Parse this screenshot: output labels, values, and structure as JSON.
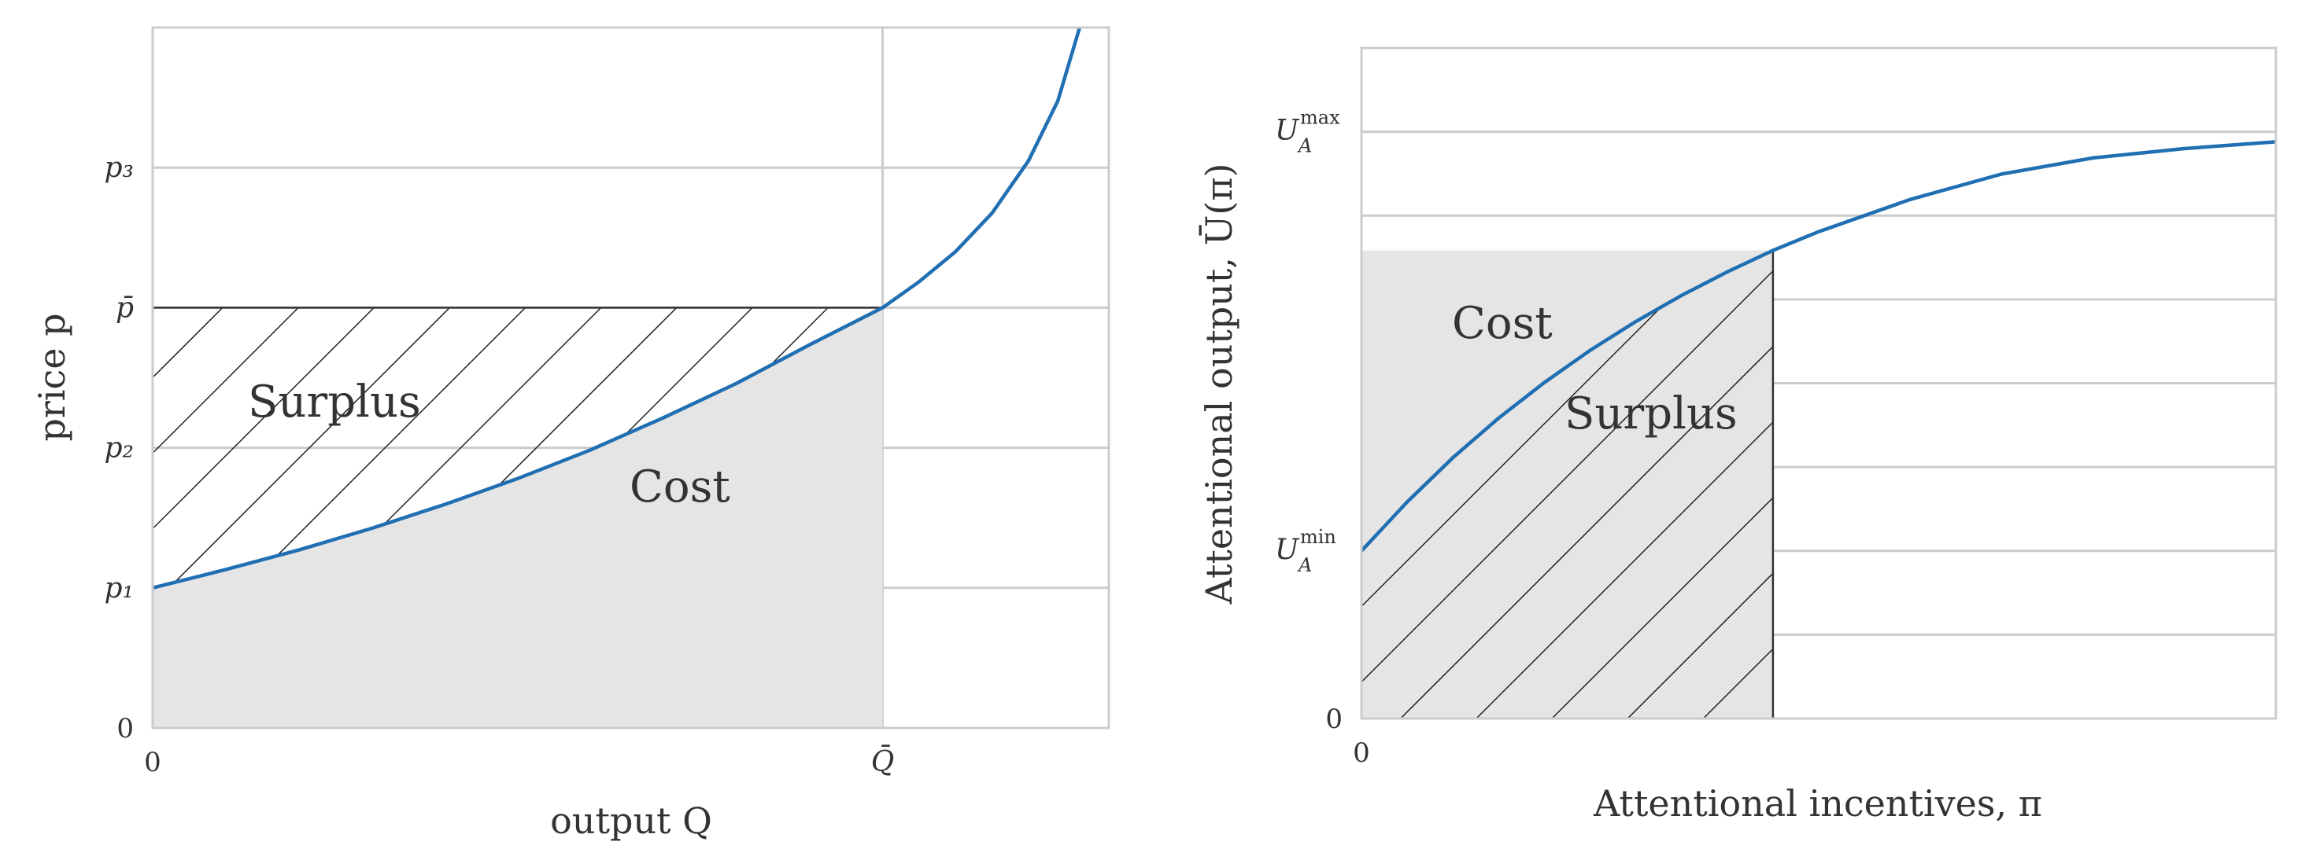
{
  "chart_data": [
    {
      "type": "area",
      "xlabel": "output  Q",
      "ylabel": "price  p",
      "xlim": [
        0,
        1.31
      ],
      "ylim": [
        0,
        1.0
      ],
      "x_ticks": [
        {
          "value": 0,
          "label": "0"
        },
        {
          "value": 1.0,
          "label": "Q̄"
        }
      ],
      "y_ticks": [
        {
          "value": 0,
          "label": "0"
        },
        {
          "value": 0.2,
          "label": "p₁"
        },
        {
          "value": 0.4,
          "label": "p₂"
        },
        {
          "value": 0.6,
          "label": "p̄"
        },
        {
          "value": 0.8,
          "label": "p₃"
        }
      ],
      "grid": true,
      "curve": {
        "x": [
          0,
          0.1,
          0.2,
          0.3,
          0.4,
          0.5,
          0.6,
          0.7,
          0.8,
          0.9,
          1.0,
          1.05,
          1.1,
          1.15,
          1.2,
          1.24,
          1.27
        ],
        "y": [
          0.2,
          0.226,
          0.254,
          0.285,
          0.319,
          0.356,
          0.397,
          0.443,
          0.492,
          0.547,
          0.6,
          0.637,
          0.68,
          0.735,
          0.81,
          0.895,
          1.0
        ]
      },
      "regions": {
        "cost": "Cost",
        "surplus": "Surplus"
      },
      "p_bar": 0.6,
      "q_bar": 1.0
    },
    {
      "type": "area",
      "xlabel": "Attentional incentives, π",
      "ylabel": "Attentional output, Ū(π)",
      "xlim": [
        0,
        1.0
      ],
      "ylim": [
        0,
        1.0
      ],
      "x_ticks": [
        {
          "value": 0,
          "label": "0"
        }
      ],
      "y_ticks": [
        {
          "value": 0,
          "label": "0"
        },
        {
          "value": 0.25,
          "label": "U_A^min",
          "base": "U",
          "sub": "A",
          "sup": "min"
        },
        {
          "value": 0.875,
          "label": "U_A^max",
          "base": "U",
          "sub": "A",
          "sup": "max"
        }
      ],
      "grid": true,
      "curve": {
        "x": [
          0,
          0.05,
          0.1,
          0.15,
          0.2,
          0.25,
          0.3,
          0.35,
          0.4,
          0.45,
          0.5,
          0.6,
          0.7,
          0.8,
          0.9,
          1.0
        ],
        "y": [
          0.25,
          0.323,
          0.389,
          0.448,
          0.501,
          0.549,
          0.592,
          0.631,
          0.666,
          0.698,
          0.726,
          0.774,
          0.812,
          0.836,
          0.85,
          0.86
        ]
      },
      "regions": {
        "cost": "Cost",
        "surplus": "Surplus"
      },
      "pi_cut": 0.45
    }
  ]
}
